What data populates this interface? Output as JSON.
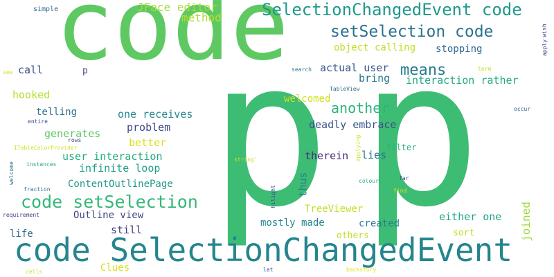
{
  "words": [
    {
      "text": "code",
      "color": "#5ec962"
    },
    {
      "text": "p",
      "color": "#3dbc74"
    },
    {
      "text": "p",
      "color": "#3dbc74"
    },
    {
      "text": "code SelectionChangedEvent",
      "color": "#25858e"
    },
    {
      "text": "SelectionChangedEvent code",
      "color": "#1f988b"
    },
    {
      "text": "setSelection code",
      "color": "#2c728e"
    },
    {
      "text": "code setSelection",
      "color": "#35b779"
    },
    {
      "text": "means",
      "color": "#287c8e"
    },
    {
      "text": "another",
      "color": "#2db27d"
    },
    {
      "text": "JFace editor",
      "color": "#a5db36"
    },
    {
      "text": "simple",
      "color": "#31688e"
    },
    {
      "text": "method",
      "color": "#b5de2b"
    },
    {
      "text": "object calling",
      "color": "#c0df25"
    },
    {
      "text": "stopping",
      "color": "#31688e"
    },
    {
      "text": "call",
      "color": "#3b528b"
    },
    {
      "text": "p",
      "color": "#3e4989"
    },
    {
      "text": "actual user",
      "color": "#39568c"
    },
    {
      "text": "bring",
      "color": "#2a788e"
    },
    {
      "text": "interaction rather",
      "color": "#22a884"
    },
    {
      "text": "hooked",
      "color": "#b5de2b"
    },
    {
      "text": "welcomed",
      "color": "#d0e11c"
    },
    {
      "text": "telling",
      "color": "#2c728e"
    },
    {
      "text": "one receives",
      "color": "#23898e"
    },
    {
      "text": "deadly embrace",
      "color": "#3b528b"
    },
    {
      "text": "generates",
      "color": "#5ec962"
    },
    {
      "text": "problem",
      "color": "#3f4788"
    },
    {
      "text": "better",
      "color": "#d8e219"
    },
    {
      "text": "therein",
      "color": "#482878"
    },
    {
      "text": "lies",
      "color": "#2a788e"
    },
    {
      "text": "user interaction",
      "color": "#25ab82"
    },
    {
      "text": "infinite loop",
      "color": "#1f9e89"
    },
    {
      "text": "thus",
      "color": "#26828e"
    },
    {
      "text": "filter",
      "color": "#2db27d"
    },
    {
      "text": "ContentOutlinePage",
      "color": "#1f988b"
    },
    {
      "text": "TreeViewer",
      "color": "#c0df25"
    },
    {
      "text": "either one",
      "color": "#20a486"
    },
    {
      "text": "joined",
      "color": "#9fda3a"
    },
    {
      "text": "Outline view",
      "color": "#404688"
    },
    {
      "text": "mostly made",
      "color": "#25858e"
    },
    {
      "text": "created",
      "color": "#287c8e"
    },
    {
      "text": "life",
      "color": "#31688e"
    },
    {
      "text": "still",
      "color": "#433e85"
    },
    {
      "text": "others",
      "color": "#bddf26"
    },
    {
      "text": "sort",
      "color": "#c0df25"
    },
    {
      "text": "Clues",
      "color": "#d8e219"
    },
    {
      "text": "search",
      "color": "#2c728e"
    },
    {
      "text": "TableView",
      "color": "#2d708e"
    },
    {
      "text": "term",
      "color": "#c8e020"
    },
    {
      "text": "occur",
      "color": "#355f8d"
    },
    {
      "text": "see",
      "color": "#d8e219"
    },
    {
      "text": "entire",
      "color": "#3e4989"
    },
    {
      "text": "rows",
      "color": "#3e4989"
    },
    {
      "text": "ITableColorProvider",
      "color": "#d0e11c"
    },
    {
      "text": "instances",
      "color": "#20a486"
    },
    {
      "text": "fraction",
      "color": "#2c728e"
    },
    {
      "text": "requirement",
      "color": "#443983"
    },
    {
      "text": "cells",
      "color": "#c8e020"
    },
    {
      "text": "let",
      "color": "#3b528b"
    },
    {
      "text": "backstory",
      "color": "#dde318"
    },
    {
      "text": "colours",
      "color": "#2db27d"
    },
    {
      "text": "far",
      "color": "#3b528b"
    },
    {
      "text": "find",
      "color": "#dde318"
    },
    {
      "text": "string'",
      "color": "#c8e020"
    },
    {
      "text": "apply",
      "color": "#404688"
    },
    {
      "text": "wish",
      "color": "#472d7b"
    },
    {
      "text": "welcome",
      "color": "#2c728e"
    },
    {
      "text": "hilight",
      "color": "#3b528b"
    },
    {
      "text": "applying",
      "color": "#c8e020"
    }
  ]
}
